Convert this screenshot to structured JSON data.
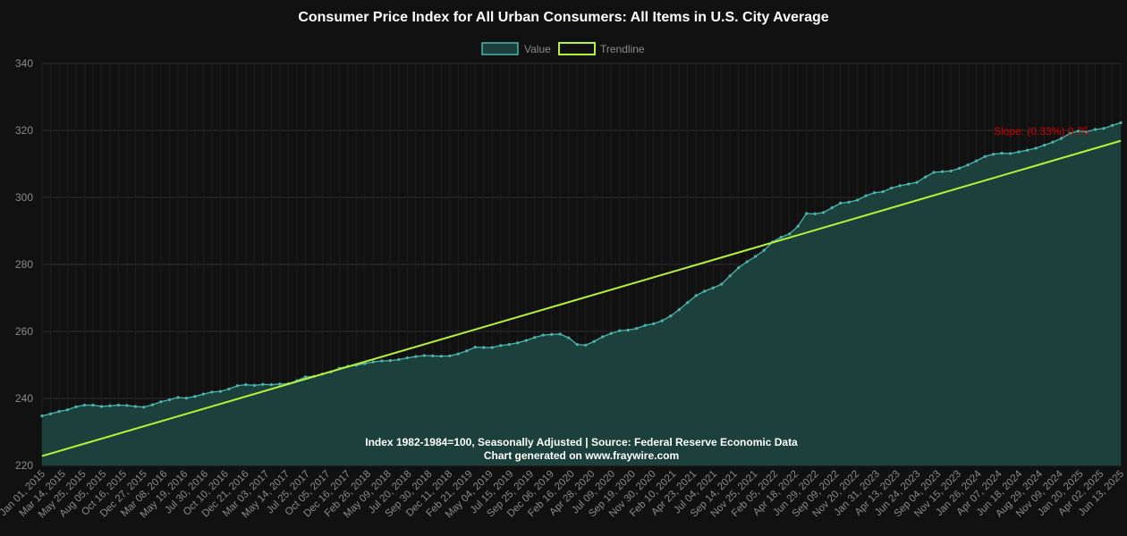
{
  "chart_data": {
    "type": "line",
    "title": "Consumer Price Index for All Urban Consumers: All Items in U.S. City Average",
    "legend": {
      "placement": "top-center",
      "value_label": "Value",
      "trend_label": "Trendline"
    },
    "colors": {
      "value_line": "#4cb5b0",
      "value_fill": "#1c403c",
      "trend_line": "#b5f23a",
      "grid": "#2e2e2e",
      "slope_text": "#d00000"
    },
    "ylim": [
      220,
      340
    ],
    "yticks": [
      "220",
      "240",
      "260",
      "280",
      "300",
      "320",
      "340"
    ],
    "grid": true,
    "x_date_range": [
      "2015-01-01",
      "2025-06-13"
    ],
    "xtick_labels": [
      "Jan 01, 2015",
      "Mar 14, 2015",
      "May 25, 2015",
      "Aug 05, 2015",
      "Oct 16, 2015",
      "Dec 27, 2015",
      "Mar 08, 2016",
      "May 19, 2016",
      "Jul 30, 2016",
      "Oct 10, 2016",
      "Dec 21, 2016",
      "Mar 03, 2017",
      "May 14, 2017",
      "Jul 25, 2017",
      "Oct 05, 2017",
      "Dec 16, 2017",
      "Feb 26, 2018",
      "May 09, 2018",
      "Jul 20, 2018",
      "Sep 30, 2018",
      "Dec 11, 2018",
      "Feb 21, 2019",
      "May 04, 2019",
      "Jul 15, 2019",
      "Sep 25, 2019",
      "Dec 06, 2019",
      "Feb 16, 2020",
      "Apr 28, 2020",
      "Jul 09, 2020",
      "Sep 19, 2020",
      "Nov 30, 2020",
      "Feb 10, 2021",
      "Apr 23, 2021",
      "Jul 04, 2021",
      "Sep 14, 2021",
      "Nov 25, 2021",
      "Feb 05, 2022",
      "Apr 18, 2022",
      "Jun 29, 2022",
      "Sep 09, 2022",
      "Nov 20, 2022",
      "Jan 31, 2023",
      "Apr 13, 2023",
      "Jun 24, 2023",
      "Sep 04, 2023",
      "Nov 15, 2023",
      "Jan 26, 2024",
      "Apr 07, 2024",
      "Jun 18, 2024",
      "Aug 29, 2024",
      "Nov 09, 2024",
      "Jan 20, 2025",
      "Apr 02, 2025",
      "Jun 13, 2025"
    ],
    "series": [
      {
        "name": "Value",
        "values": [
          234.8,
          235.4,
          236.1,
          236.6,
          237.5,
          238.0,
          238.0,
          237.6,
          237.8,
          238.0,
          237.9,
          237.6,
          237.4,
          238.1,
          239.0,
          239.6,
          240.3,
          240.1,
          240.6,
          241.3,
          241.9,
          242.1,
          242.8,
          243.8,
          244.1,
          243.9,
          244.2,
          244.1,
          244.3,
          244.4,
          245.3,
          246.4,
          246.6,
          247.3,
          247.9,
          249.0,
          249.6,
          249.9,
          250.4,
          250.9,
          251.2,
          251.3,
          251.6,
          252.1,
          252.5,
          252.8,
          252.7,
          252.6,
          252.7,
          253.3,
          254.2,
          255.3,
          255.2,
          255.2,
          255.8,
          256.1,
          256.6,
          257.3,
          258.2,
          258.9,
          259.1,
          259.2,
          258.1,
          256.1,
          255.9,
          257.0,
          258.4,
          259.4,
          260.2,
          260.4,
          260.9,
          261.8,
          262.3,
          263.2,
          264.6,
          266.5,
          268.6,
          270.7,
          272.0,
          273.0,
          274.1,
          276.6,
          279.0,
          280.8,
          282.4,
          284.2,
          286.7,
          288.1,
          289.1,
          291.4,
          295.2,
          295.1,
          295.5,
          296.9,
          298.3,
          298.6,
          299.2,
          300.5,
          301.4,
          301.7,
          302.8,
          303.5,
          304.0,
          304.5,
          306.1,
          307.5,
          307.7,
          307.9,
          308.7,
          309.7,
          310.9,
          312.2,
          312.9,
          313.2,
          313.1,
          313.6,
          314.1,
          314.7,
          315.6,
          316.5,
          317.6,
          319.1,
          319.8,
          319.6,
          320.3,
          320.6,
          321.5,
          322.3
        ]
      },
      {
        "name": "Trendline",
        "values": [
          222.8,
          316.9
        ]
      }
    ],
    "annotations": {
      "slope": "Slope: (0.33%) 0.75",
      "source_line1": "Index 1982-1984=100, Seasonally Adjusted | Source: Federal Reserve Economic Data",
      "source_line2": "Chart generated on www.fraywire.com"
    }
  }
}
